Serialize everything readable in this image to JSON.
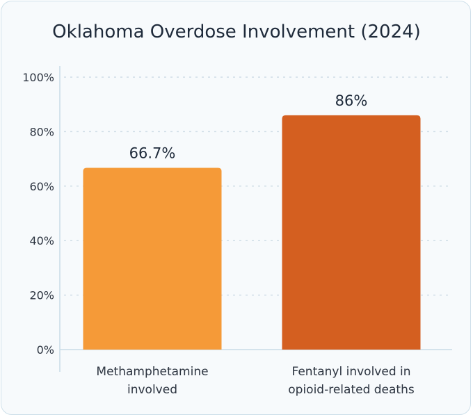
{
  "chart_data": {
    "type": "bar",
    "title": "Oklahoma Overdose Involvement (2024)",
    "categories": [
      [
        "Methamphetamine",
        "involved"
      ],
      [
        "Fentanyl involved in",
        "opioid-related deaths"
      ]
    ],
    "values": [
      66.7,
      86
    ],
    "value_labels": [
      "66.7%",
      "86%"
    ],
    "colors": [
      "#f59a38",
      "#d45f20"
    ],
    "ylim": [
      0,
      100
    ],
    "yticks": [
      0,
      20,
      40,
      60,
      80,
      100
    ],
    "ytick_labels": [
      "0%",
      "20%",
      "40%",
      "60%",
      "80%",
      "100%"
    ],
    "grid": true,
    "xlabel": "",
    "ylabel": ""
  }
}
